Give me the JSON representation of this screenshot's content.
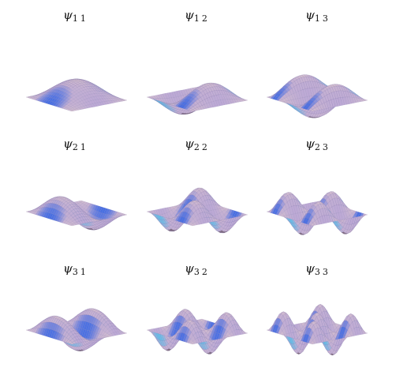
{
  "figure": {
    "panels": [
      {
        "symbol": "ψ",
        "index": "11",
        "m": 1,
        "n": 1
      },
      {
        "symbol": "ψ",
        "index": "12",
        "m": 1,
        "n": 2
      },
      {
        "symbol": "ψ",
        "index": "13",
        "m": 1,
        "n": 3
      },
      {
        "symbol": "ψ",
        "index": "21",
        "m": 2,
        "n": 1
      },
      {
        "symbol": "ψ",
        "index": "22",
        "m": 2,
        "n": 2
      },
      {
        "symbol": "ψ",
        "index": "23",
        "m": 2,
        "n": 3
      },
      {
        "symbol": "ψ",
        "index": "31",
        "m": 3,
        "n": 1
      },
      {
        "symbol": "ψ",
        "index": "32",
        "m": 3,
        "n": 2
      },
      {
        "symbol": "ψ",
        "index": "33",
        "m": 3,
        "n": 3
      }
    ],
    "colors": {
      "surface_base": "#b9a6d6",
      "surface_warm": "#f1d9c6",
      "ridge_blue": "#2f63e6",
      "ridge_cyan": "#52c6ee",
      "trough_dark": "#3a2530",
      "wire": "#7b6fa6"
    }
  }
}
